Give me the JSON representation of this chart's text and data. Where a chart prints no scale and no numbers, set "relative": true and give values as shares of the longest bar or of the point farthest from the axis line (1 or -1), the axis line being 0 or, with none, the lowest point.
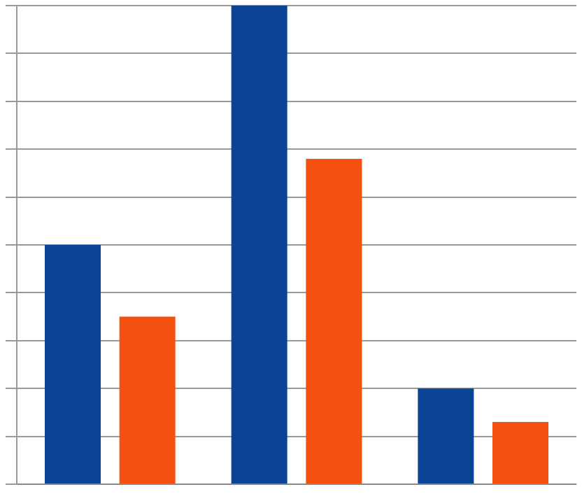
{
  "chart_data": {
    "type": "bar",
    "relative": true,
    "categories": [
      null,
      null,
      null
    ],
    "series": [
      {
        "color": "#0b4494",
        "values": [
          0.5,
          1,
          0.2
        ]
      },
      {
        "color": "#f4500f",
        "values": [
          0.35,
          0.68,
          0.13
        ]
      }
    ],
    "grid": "y",
    "tick_labels": false
  }
}
